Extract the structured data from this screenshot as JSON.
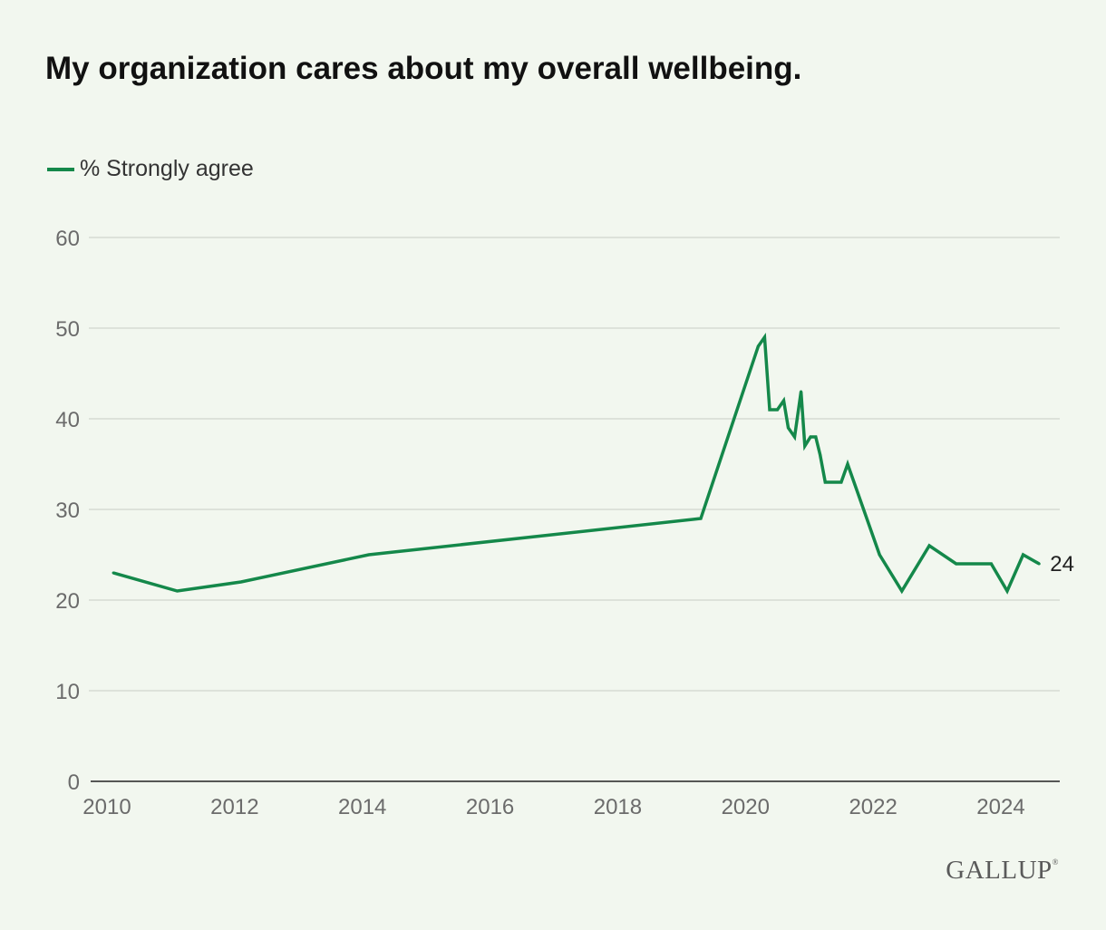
{
  "title": "My organization cares about my overall wellbeing.",
  "legend": {
    "label": "% Strongly agree"
  },
  "logo": {
    "text": "GALLUP",
    "mark": "®"
  },
  "colors": {
    "background": "#f2f7ef",
    "series": "#14884a",
    "grid": "#d6dbd3",
    "axis": "#222222"
  },
  "chart_data": {
    "type": "line",
    "title": "My organization cares about my overall wellbeing.",
    "xlabel": "",
    "ylabel": "",
    "xlim": [
      2010,
      2025.3
    ],
    "ylim": [
      0,
      60
    ],
    "x_ticks": [
      2010,
      2012,
      2014,
      2016,
      2018,
      2020,
      2022,
      2024
    ],
    "y_ticks": [
      0,
      10,
      20,
      30,
      40,
      50,
      60
    ],
    "grid": true,
    "legend_position": "top-left",
    "series": [
      {
        "name": "% Strongly agree",
        "color": "#14884a",
        "end_label": "24",
        "points": [
          [
            2010.1,
            23
          ],
          [
            2011.1,
            21
          ],
          [
            2012.1,
            22
          ],
          [
            2014.1,
            25
          ],
          [
            2019.3,
            29
          ],
          [
            2020.2,
            48
          ],
          [
            2020.3,
            49
          ],
          [
            2020.38,
            41
          ],
          [
            2020.5,
            41
          ],
          [
            2020.6,
            42
          ],
          [
            2020.67,
            39
          ],
          [
            2020.77,
            38
          ],
          [
            2020.87,
            43
          ],
          [
            2020.93,
            37
          ],
          [
            2021.02,
            38
          ],
          [
            2021.1,
            38
          ],
          [
            2021.17,
            36
          ],
          [
            2021.25,
            33
          ],
          [
            2021.5,
            33
          ],
          [
            2021.6,
            35
          ],
          [
            2022.1,
            25
          ],
          [
            2022.45,
            21
          ],
          [
            2022.88,
            26
          ],
          [
            2023.3,
            24
          ],
          [
            2023.85,
            24
          ],
          [
            2024.1,
            21
          ],
          [
            2024.35,
            25
          ],
          [
            2024.6,
            24
          ]
        ]
      }
    ]
  }
}
